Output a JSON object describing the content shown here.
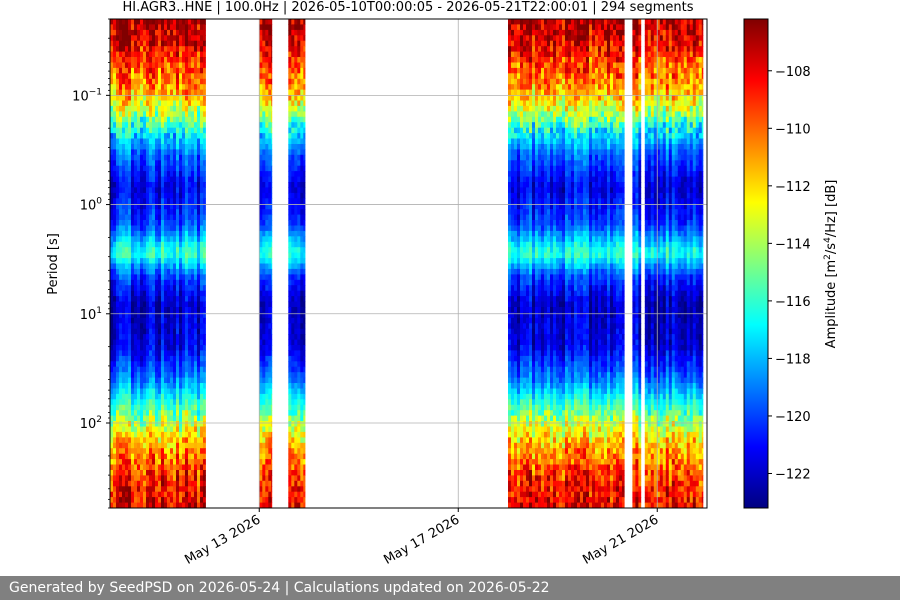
{
  "footer": {
    "text": "Generated by SeedPSD on 2026-05-24 | Calculations updated on 2026-05-22"
  },
  "chart_data": {
    "type": "heatmap",
    "title": "HI.AGR3..HNE | 100.0Hz | 2026-05-10T00:00:05 - 2026-05-21T22:00:01 | 294 segments",
    "ylabel": "Period [s]",
    "xlabel": "",
    "yscale": "log",
    "y_inverted": true,
    "ylim": [
      0.02,
      600
    ],
    "xlim": [
      "2026-05-10 00:00",
      "2026-05-22 00:00"
    ],
    "x_ticks": [
      {
        "date": "2026-05-13",
        "label": "May 13 2026"
      },
      {
        "date": "2026-05-17",
        "label": "May 17 2026"
      },
      {
        "date": "2026-05-21",
        "label": "May 21 2026"
      }
    ],
    "y_ticks": [
      {
        "value": 0.1,
        "base": "10",
        "exp": "−1"
      },
      {
        "value": 1,
        "base": "10",
        "exp": "0"
      },
      {
        "value": 10,
        "base": "10",
        "exp": "1"
      },
      {
        "value": 100,
        "base": "10",
        "exp": "2"
      }
    ],
    "grid": true,
    "colormap": "jet",
    "colorbar": {
      "label_main": "Amplitude [m",
      "label_sup1": "2",
      "label_mid": "/s",
      "label_sup2": "4",
      "label_end": "/Hz] [dB]",
      "min": -123.2,
      "max": -106.2,
      "ticks": [
        -108,
        -110,
        -112,
        -114,
        -116,
        -118,
        -120,
        -122
      ],
      "tick_labels": [
        "−108",
        "−110",
        "−112",
        "−114",
        "−116",
        "−118",
        "−120",
        "−122"
      ]
    },
    "data_intervals": [
      {
        "start": "2026-05-10 00:00",
        "end": "2026-05-11 22:00"
      },
      {
        "start": "2026-05-13 00:00",
        "end": "2026-05-13 06:00"
      },
      {
        "start": "2026-05-13 14:00",
        "end": "2026-05-13 22:00"
      },
      {
        "start": "2026-05-18 00:00",
        "end": "2026-05-20 08:00"
      },
      {
        "start": "2026-05-20 12:00",
        "end": "2026-05-20 16:00"
      },
      {
        "start": "2026-05-20 18:00",
        "end": "2026-05-21 22:00"
      }
    ],
    "mean_spectrum": [
      {
        "period": 0.02,
        "db": -107.0
      },
      {
        "period": 0.03,
        "db": -107.5
      },
      {
        "period": 0.05,
        "db": -109.5
      },
      {
        "period": 0.08,
        "db": -110.5
      },
      {
        "period": 0.12,
        "db": -112.5
      },
      {
        "period": 0.2,
        "db": -116.5
      },
      {
        "period": 0.35,
        "db": -119.5
      },
      {
        "period": 0.7,
        "db": -121.5
      },
      {
        "period": 1.5,
        "db": -120.0
      },
      {
        "period": 2.8,
        "db": -116.0
      },
      {
        "period": 4.5,
        "db": -120.0
      },
      {
        "period": 8,
        "db": -122.0
      },
      {
        "period": 20,
        "db": -121.5
      },
      {
        "period": 40,
        "db": -119.0
      },
      {
        "period": 80,
        "db": -115.0
      },
      {
        "period": 150,
        "db": -111.5
      },
      {
        "period": 300,
        "db": -109.0
      },
      {
        "period": 600,
        "db": -108.0
      }
    ]
  }
}
